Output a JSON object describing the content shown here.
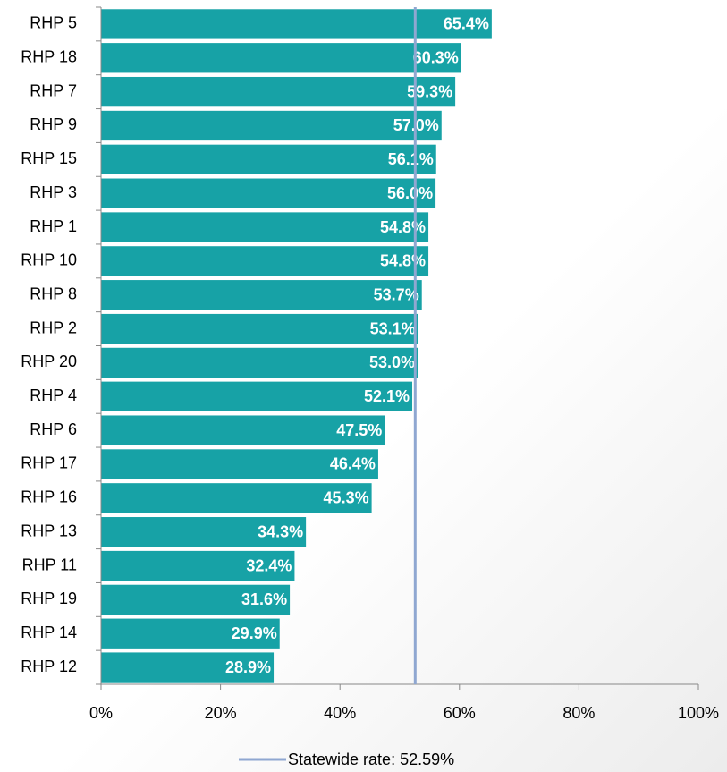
{
  "chart_data": {
    "type": "bar",
    "orientation": "horizontal",
    "categories": [
      "RHP 5",
      "RHP 18",
      "RHP 7",
      "RHP 9",
      "RHP 15",
      "RHP 3",
      "RHP 1",
      "RHP 10",
      "RHP 8",
      "RHP 2",
      "RHP 20",
      "RHP 4",
      "RHP 6",
      "RHP 17",
      "RHP 16",
      "RHP 13",
      "RHP 11",
      "RHP 19",
      "RHP 14",
      "RHP 12"
    ],
    "values": [
      65.4,
      60.3,
      59.3,
      57.0,
      56.1,
      56.0,
      54.8,
      54.8,
      53.7,
      53.1,
      53.0,
      52.1,
      47.5,
      46.4,
      45.3,
      34.3,
      32.4,
      31.6,
      29.9,
      28.9
    ],
    "value_labels": [
      "65.4%",
      "60.3%",
      "59.3%",
      "57.0%",
      "56.1%",
      "56.0%",
      "54.8%",
      "54.8%",
      "53.7%",
      "53.1%",
      "53.0%",
      "52.1%",
      "47.5%",
      "46.4%",
      "45.3%",
      "34.3%",
      "32.4%",
      "31.6%",
      "29.9%",
      "28.9%"
    ],
    "color": "#17a2a6",
    "xlim": [
      0,
      100
    ],
    "xticks": [
      {
        "value": 0,
        "label": "0%"
      },
      {
        "value": 20,
        "label": "20%"
      },
      {
        "value": 40,
        "label": "40%"
      },
      {
        "value": 60,
        "label": "60%"
      },
      {
        "value": 80,
        "label": "80%"
      },
      {
        "value": 100,
        "label": "100%"
      }
    ],
    "reference_line": {
      "value": 52.59,
      "label": "Statewide rate: 52.59%",
      "color": "#8fa7d1"
    }
  }
}
